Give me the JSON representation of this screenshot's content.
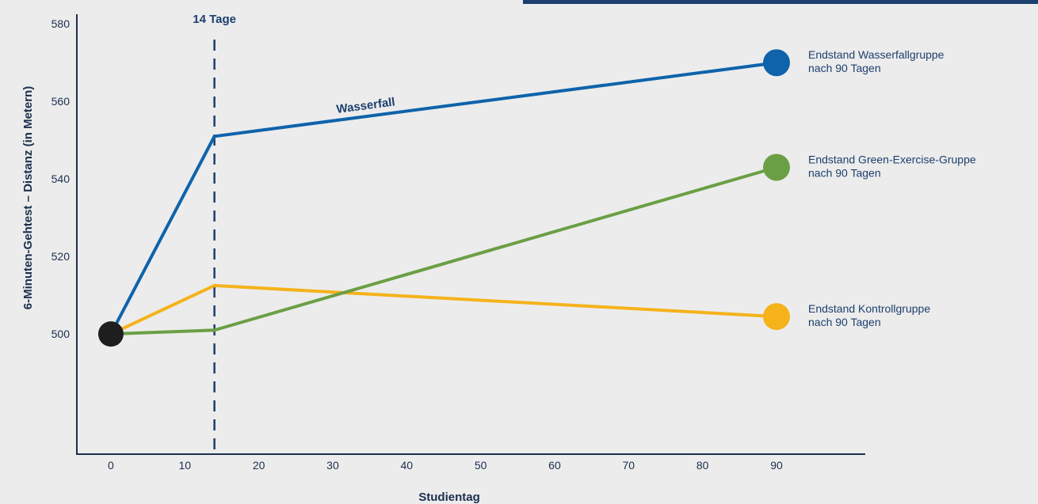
{
  "chart_data": {
    "type": "line",
    "xlabel": "Studientag",
    "ylabel": "6-Minuten-Gehtest – Distanz (in Metern)",
    "x_ticks": [
      0,
      10,
      20,
      30,
      40,
      50,
      60,
      70,
      80,
      90
    ],
    "y_ticks": [
      500,
      520,
      540,
      560,
      580
    ],
    "xlim": [
      -4.6,
      102
    ],
    "ylim": [
      469,
      582.5
    ],
    "grid": false,
    "marker_line": {
      "x": 14,
      "label": "14 Tage",
      "style": "dashed",
      "color": "#1d3f6e"
    },
    "start_point": {
      "x": 0,
      "y": 500,
      "color": "#1e1e1e"
    },
    "series": [
      {
        "name": "Wasserfall",
        "color": "#0e63ab",
        "x": [
          0,
          14,
          90
        ],
        "y": [
          500,
          551,
          570
        ],
        "end_label": [
          "Endstand Wasserfallgruppe",
          "nach 90 Tagen"
        ]
      },
      {
        "color": "#6b9f45",
        "x": [
          0,
          14,
          90
        ],
        "y": [
          500,
          501,
          543
        ],
        "end_label": [
          "Endstand Green-Exercise-Gruppe",
          "nach 90 Tagen"
        ]
      },
      {
        "color": "#f5b21a",
        "x": [
          0,
          14,
          90
        ],
        "y": [
          500,
          512.5,
          504.5
        ],
        "end_label": [
          "Endstand Kontrollgruppe",
          "nach 90 Tagen"
        ]
      }
    ]
  }
}
